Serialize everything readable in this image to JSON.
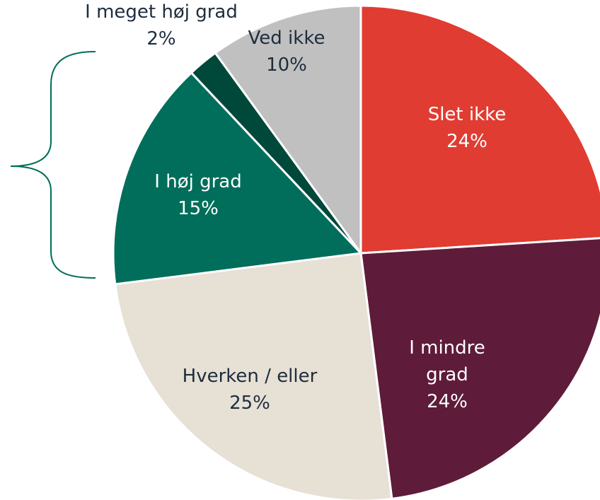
{
  "chart_data": {
    "type": "pie",
    "categories": [
      "Slet ikke",
      "I mindre\ngrad",
      "Hverken / eller",
      "I høj grad",
      "I meget høj grad",
      "Ved ikke"
    ],
    "values": [
      24,
      24,
      25,
      15,
      2,
      10
    ],
    "value_labels": [
      "24%",
      "24%",
      "25%",
      "15%",
      "2%",
      "10%"
    ],
    "colors": [
      "#e03c31",
      "#5e1c3a",
      "#e6e0d5",
      "#006e5a",
      "#00483a",
      "#c0c0c0"
    ]
  }
}
